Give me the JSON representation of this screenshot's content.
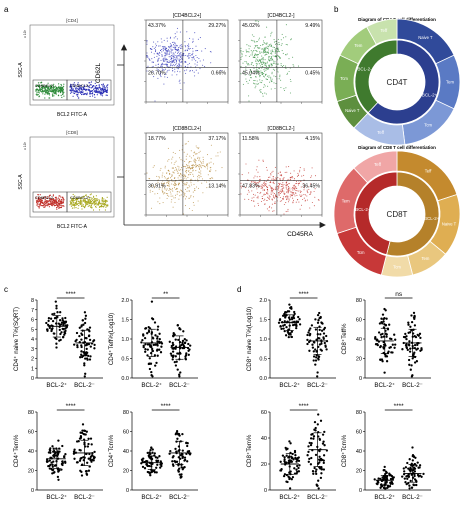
{
  "panels": {
    "a": {
      "letter": "a",
      "gates": {
        "cd4": {
          "title": "[CD4]",
          "yaxis": "SSC-A",
          "yexp": "x 10³",
          "xaxis": "BCL2 FITC-A",
          "neg": "CD4BCL2-",
          "pos": "CD4BCL2+"
        },
        "cd8": {
          "title": "[CD8]",
          "yaxis": "SSC-A",
          "yexp": "x 10³",
          "xaxis": "BCL2 FITC-A",
          "neg": "CD8BCL2-",
          "pos": "CD8BCL2+"
        }
      },
      "quad_y": "CD62L",
      "quad_x": "CD45RA",
      "quads": [
        {
          "title": "[CD4BCL2+]",
          "q": [
            "43.37%",
            "29.27%",
            "26.70%",
            "0.66%"
          ],
          "color": "#2a2fb5"
        },
        {
          "title": "[CD4BCL2-]",
          "q": [
            "45.02%",
            "9.49%",
            "45.04%",
            "0.45%"
          ],
          "color": "#2e8b3a"
        },
        {
          "title": "[CD8BCL2+]",
          "q": [
            "18.77%",
            "37.17%",
            "30.91%",
            "13.14%"
          ],
          "color": "#b48a3c"
        },
        {
          "title": "[CD8BCL2-]",
          "q": [
            "11.58%",
            "4.15%",
            "47.83%",
            "36.45%"
          ],
          "color": "#c0302a"
        }
      ]
    },
    "b": {
      "letter": "b",
      "cd4": {
        "title": "Diagram of CD4 T cell differentiation",
        "center": "CD4T",
        "outer": [
          "Naive T",
          "Tem",
          "Tcm",
          "Teff",
          "Naive T",
          "Tcm",
          "Tem",
          "Teff"
        ],
        "inner": [
          "BCL-2+",
          "BCL-2-"
        ]
      },
      "cd8": {
        "title": "Diagram of CD8 T cell differentiation",
        "center": "CD8T",
        "outer": [
          "Teff",
          "Naive T",
          "Tem",
          "Tcm",
          "Tcm",
          "Tem",
          "Teff"
        ],
        "inner": [
          "BCL-2+",
          "BCL-2-"
        ]
      }
    },
    "c": {
      "letter": "c"
    },
    "d": {
      "letter": "d"
    }
  },
  "scatter": {
    "xcats": [
      "BCL-2⁺",
      "BCL-2⁻"
    ],
    "plots": [
      {
        "id": "c1",
        "ylabel": "CD4⁺ naive T%(SQRT)",
        "yticks": [
          "0",
          "1",
          "2",
          "3",
          "4",
          "5",
          "6",
          "7",
          "8"
        ],
        "sig": "****"
      },
      {
        "id": "c2",
        "ylabel": "CD4⁺Teff%(Log10)",
        "yticks": [
          "0.0",
          "0.5",
          "1.0",
          "1.5",
          "2.0"
        ],
        "sig": "**"
      },
      {
        "id": "c3",
        "ylabel": "CD4⁺Tem%",
        "yticks": [
          "0",
          "20",
          "40",
          "60",
          "80"
        ],
        "sig": "****"
      },
      {
        "id": "c4",
        "ylabel": "CD4⁺Tcm%",
        "yticks": [
          "0",
          "20",
          "40",
          "60",
          "80"
        ],
        "sig": "****"
      },
      {
        "id": "d1",
        "ylabel": "CD8⁺ naive T%(Log10)",
        "yticks": [
          "0.0",
          "0.5",
          "1.0",
          "1.5",
          "2.0"
        ],
        "sig": "****"
      },
      {
        "id": "d2",
        "ylabel": "CD8⁺Teff%",
        "yticks": [
          "0",
          "20",
          "40",
          "60",
          "80"
        ],
        "sig": "ns"
      },
      {
        "id": "d3",
        "ylabel": "CD8⁺Tem%",
        "yticks": [
          "0",
          "20",
          "40",
          "60"
        ],
        "sig": "****"
      },
      {
        "id": "d4",
        "ylabel": "CD8⁺Tcm%",
        "yticks": [
          "0",
          "20",
          "40",
          "60",
          "80"
        ],
        "sig": "****"
      }
    ]
  },
  "chart_data": [
    {
      "type": "scatter",
      "ylabel": "CD4⁺ naive T%(SQRT)",
      "categories": [
        "BCL-2⁺",
        "BCL-2⁻"
      ],
      "ylim": [
        0,
        8
      ],
      "mean": [
        5.3,
        3.6
      ],
      "sd": [
        1.1,
        1.3
      ],
      "sig": "****"
    },
    {
      "type": "scatter",
      "ylabel": "CD4⁺Teff%(Log10)",
      "categories": [
        "BCL-2⁺",
        "BCL-2⁻"
      ],
      "ylim": [
        0,
        2
      ],
      "mean": [
        0.9,
        0.78
      ],
      "sd": [
        0.35,
        0.3
      ],
      "sig": "**"
    },
    {
      "type": "scatter",
      "ylabel": "CD4⁺Tem%",
      "categories": [
        "BCL-2⁺",
        "BCL-2⁻"
      ],
      "ylim": [
        0,
        80
      ],
      "mean": [
        32,
        38
      ],
      "sd": [
        10,
        13
      ],
      "sig": "****"
    },
    {
      "type": "scatter",
      "ylabel": "CD4⁺Tcm%",
      "categories": [
        "BCL-2⁺",
        "BCL-2⁻"
      ],
      "ylim": [
        0,
        80
      ],
      "mean": [
        28,
        38
      ],
      "sd": [
        7,
        12
      ],
      "sig": "****"
    },
    {
      "type": "scatter",
      "ylabel": "CD8⁺ naive T%(Log10)",
      "categories": [
        "BCL-2⁺",
        "BCL-2⁻"
      ],
      "ylim": [
        0,
        2
      ],
      "mean": [
        1.42,
        0.95
      ],
      "sd": [
        0.2,
        0.35
      ],
      "sig": "****"
    },
    {
      "type": "scatter",
      "ylabel": "CD8⁺Teff%",
      "categories": [
        "BCL-2⁺",
        "BCL-2⁻"
      ],
      "ylim": [
        0,
        80
      ],
      "mean": [
        38,
        36
      ],
      "sd": [
        13,
        14
      ],
      "sig": "ns"
    },
    {
      "type": "scatter",
      "ylabel": "CD8⁺Tem%",
      "categories": [
        "BCL-2⁺",
        "BCL-2⁻"
      ],
      "ylim": [
        0,
        60
      ],
      "mean": [
        20,
        31
      ],
      "sd": [
        8,
        13
      ],
      "sig": "****"
    },
    {
      "type": "scatter",
      "ylabel": "CD8⁺Tcm%",
      "categories": [
        "BCL-2⁺",
        "BCL-2⁻"
      ],
      "ylim": [
        0,
        80
      ],
      "mean": [
        10,
        17
      ],
      "sd": [
        5,
        9
      ],
      "sig": "****"
    }
  ]
}
